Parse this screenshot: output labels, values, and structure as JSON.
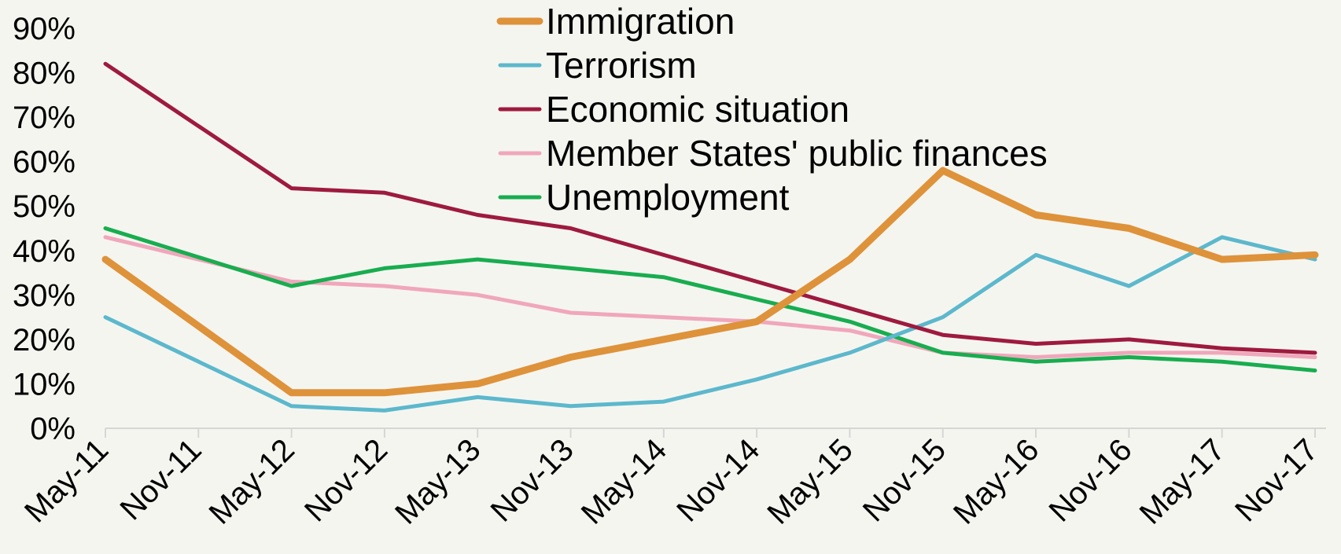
{
  "chart_data": {
    "type": "line",
    "categories": [
      "May-11",
      "Nov-11",
      "May-12",
      "Nov-12",
      "May-13",
      "Nov-13",
      "May-14",
      "Nov-14",
      "May-15",
      "Nov-15",
      "May-16",
      "Nov-16",
      "May-17",
      "Nov-17"
    ],
    "ylim": [
      0,
      90
    ],
    "yticks": [
      "0%",
      "10%",
      "20%",
      "30%",
      "40%",
      "50%",
      "60%",
      "70%",
      "80%",
      "90%"
    ],
    "grid": false,
    "legend_position": "top-center",
    "series": [
      {
        "name": "Immigration",
        "color": "#de923a",
        "width": 9,
        "values": [
          38,
          null,
          8,
          8,
          10,
          16,
          20,
          24,
          38,
          58,
          48,
          45,
          38,
          39
        ]
      },
      {
        "name": "Terrorism",
        "color": "#5cb8cc",
        "width": 5,
        "values": [
          25,
          null,
          5,
          4,
          7,
          5,
          6,
          11,
          17,
          25,
          39,
          32,
          43,
          38
        ]
      },
      {
        "name": "Economic situation",
        "color": "#9e1a3e",
        "width": 5,
        "values": [
          82,
          null,
          54,
          53,
          48,
          45,
          39,
          33,
          27,
          21,
          19,
          20,
          18,
          17
        ]
      },
      {
        "name": "Member States' public finances",
        "color": "#f0a7bb",
        "width": 5,
        "values": [
          43,
          null,
          33,
          32,
          30,
          26,
          25,
          24,
          22,
          17,
          16,
          17,
          17,
          16
        ]
      },
      {
        "name": "Unemployment",
        "color": "#18ad4f",
        "width": 5,
        "values": [
          45,
          null,
          32,
          36,
          38,
          36,
          34,
          29,
          24,
          17,
          15,
          16,
          15,
          13
        ]
      }
    ]
  }
}
